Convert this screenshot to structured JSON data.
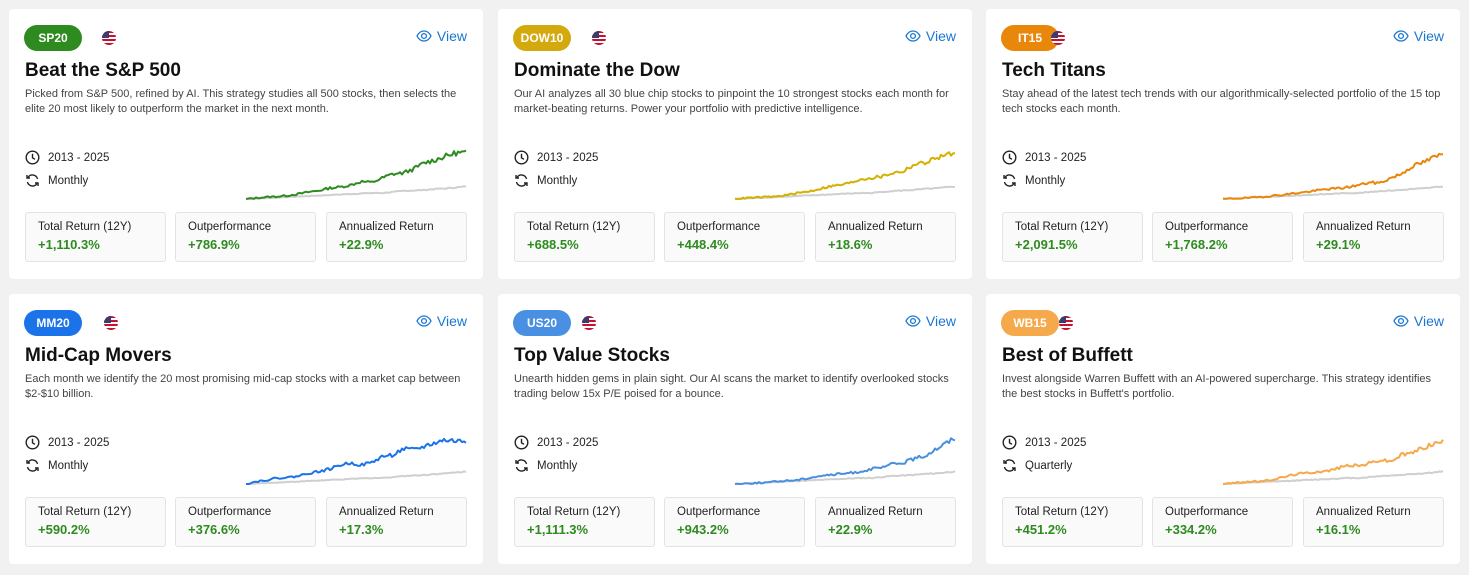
{
  "view_label": "View",
  "stat_labels": [
    "Total Return (12Y)",
    "Outperformance",
    "Annualized Return"
  ],
  "cards": [
    {
      "badge": "SP20",
      "badge_color": "#2e8b1f",
      "line_color": "#2e8b1f",
      "title": "Beat the S&P 500",
      "description": "Picked from S&P 500, refined by AI. This strategy studies all 500 stocks, then selects the elite 20 most likely to outperform the market in the next month.",
      "period": "2013 - 2025",
      "frequency": "Monthly",
      "total_return": "+1,110.3%",
      "outperformance": "+786.9%",
      "annualized": "+22.9%"
    },
    {
      "badge": "DOW10",
      "badge_color": "#d4a90d",
      "line_color": "#d4b000",
      "title": "Dominate the Dow",
      "description": "Our AI analyzes all 30 blue chip stocks to pinpoint the 10 strongest stocks each month for market-beating returns. Power your portfolio with predictive intelligence.",
      "period": "2013 - 2025",
      "frequency": "Monthly",
      "total_return": "+688.5%",
      "outperformance": "+448.4%",
      "annualized": "+18.6%"
    },
    {
      "badge": "IT15",
      "badge_color": "#e8870a",
      "line_color": "#e8870a",
      "title": "Tech Titans",
      "description": "Stay ahead of the latest tech trends with our algorithmically-selected portfolio of the 15 top tech stocks each month.",
      "period": "2013 - 2025",
      "frequency": "Monthly",
      "total_return": "+2,091.5%",
      "outperformance": "+1,768.2%",
      "annualized": "+29.1%"
    },
    {
      "badge": "MM20",
      "badge_color": "#1a73e8",
      "line_color": "#1a73e8",
      "title": "Mid-Cap Movers",
      "description": "Each month we identify the 20 most promising mid-cap stocks with a market cap between $2-$10 billion.",
      "period": "2013 - 2025",
      "frequency": "Monthly",
      "total_return": "+590.2%",
      "outperformance": "+376.6%",
      "annualized": "+17.3%"
    },
    {
      "badge": "US20",
      "badge_color": "#4a90e2",
      "line_color": "#4a8fdf",
      "title": "Top Value Stocks",
      "description": "Unearth hidden gems in plain sight. Our AI scans the market to identify overlooked stocks trading below 15x P/E poised for a bounce.",
      "period": "2013 - 2025",
      "frequency": "Monthly",
      "total_return": "+1,111.3%",
      "outperformance": "+943.2%",
      "annualized": "+22.9%"
    },
    {
      "badge": "WB15",
      "badge_color": "#f5a94a",
      "line_color": "#f5a94a",
      "title": "Best of Buffett",
      "description": "Invest alongside Warren Buffett with an AI-powered supercharge. This strategy identifies the best stocks in Buffett's portfolio.",
      "period": "2013 - 2025",
      "frequency": "Quarterly",
      "total_return": "+451.2%",
      "outperformance": "+334.2%",
      "annualized": "+16.1%"
    }
  ]
}
